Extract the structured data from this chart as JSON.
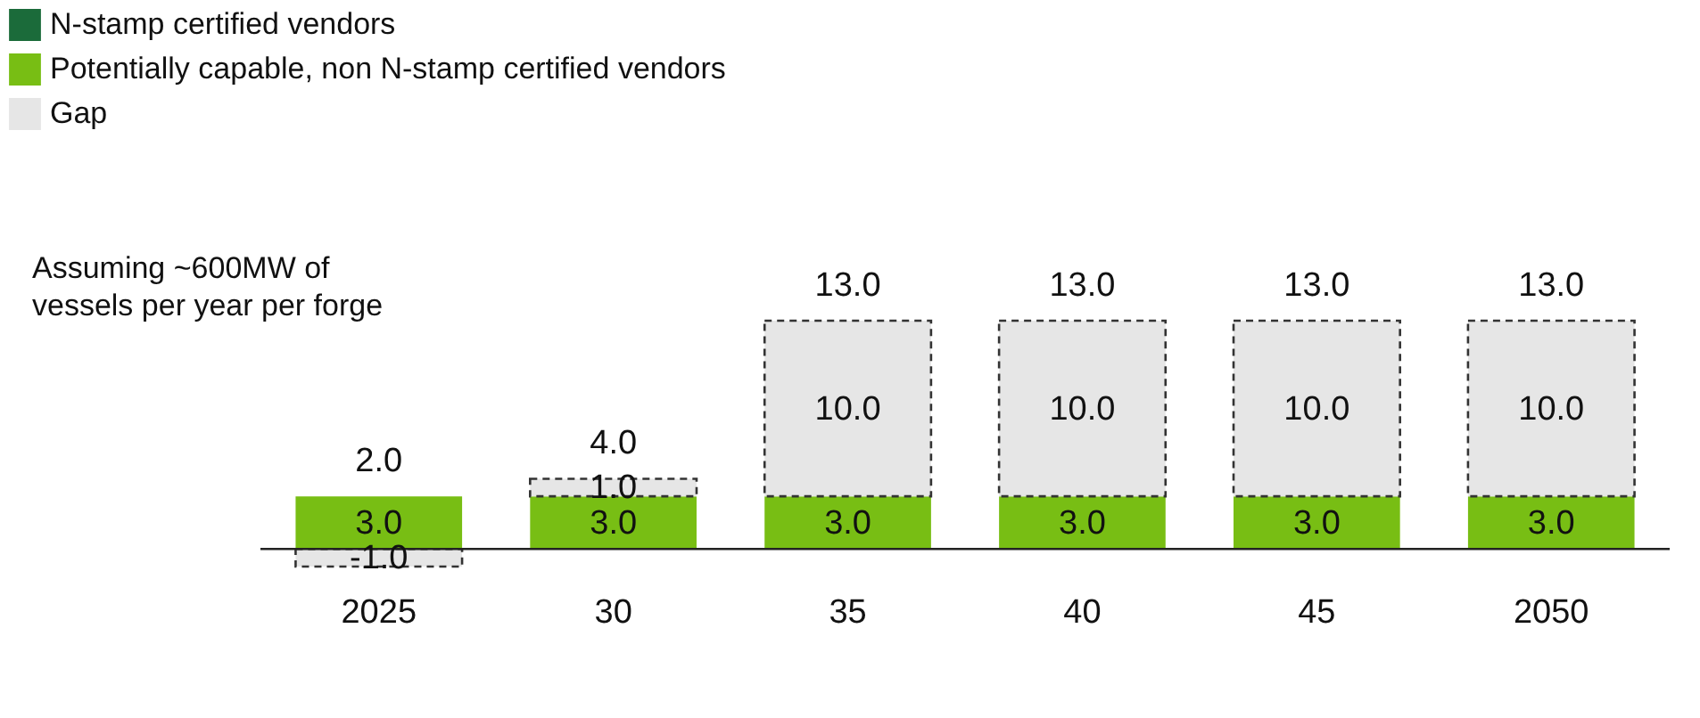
{
  "chart_data": {
    "type": "bar",
    "stacked": true,
    "categories": [
      "2025",
      "30",
      "35",
      "40",
      "45",
      "2050"
    ],
    "series": [
      {
        "name": "N-stamp certified vendors",
        "color": "#1b6b3a",
        "values": [
          0,
          0,
          0,
          0,
          0,
          0
        ],
        "value_labels": [
          null,
          null,
          null,
          null,
          null,
          null
        ]
      },
      {
        "name": "Potentially capable, non N-stamp certified vendors",
        "color": "#78be14",
        "values": [
          3.0,
          3.0,
          3.0,
          3.0,
          3.0,
          3.0
        ],
        "value_labels": [
          "3.0",
          "3.0",
          "3.0",
          "3.0",
          "3.0",
          "3.0"
        ]
      },
      {
        "name": "Gap",
        "color": "#e6e6e6",
        "line_style": "dashed",
        "values": [
          -1.0,
          1.0,
          10.0,
          10.0,
          10.0,
          10.0
        ],
        "value_labels": [
          "-1.0",
          "1.0",
          "10.0",
          "10.0",
          "10.0",
          "10.0"
        ]
      }
    ],
    "totals": [
      "2.0",
      "4.0",
      "13.0",
      "13.0",
      "13.0",
      "13.0"
    ],
    "legend": "top left",
    "annotations": [
      "Assuming ~600MW of vessels per year per forge"
    ]
  }
}
